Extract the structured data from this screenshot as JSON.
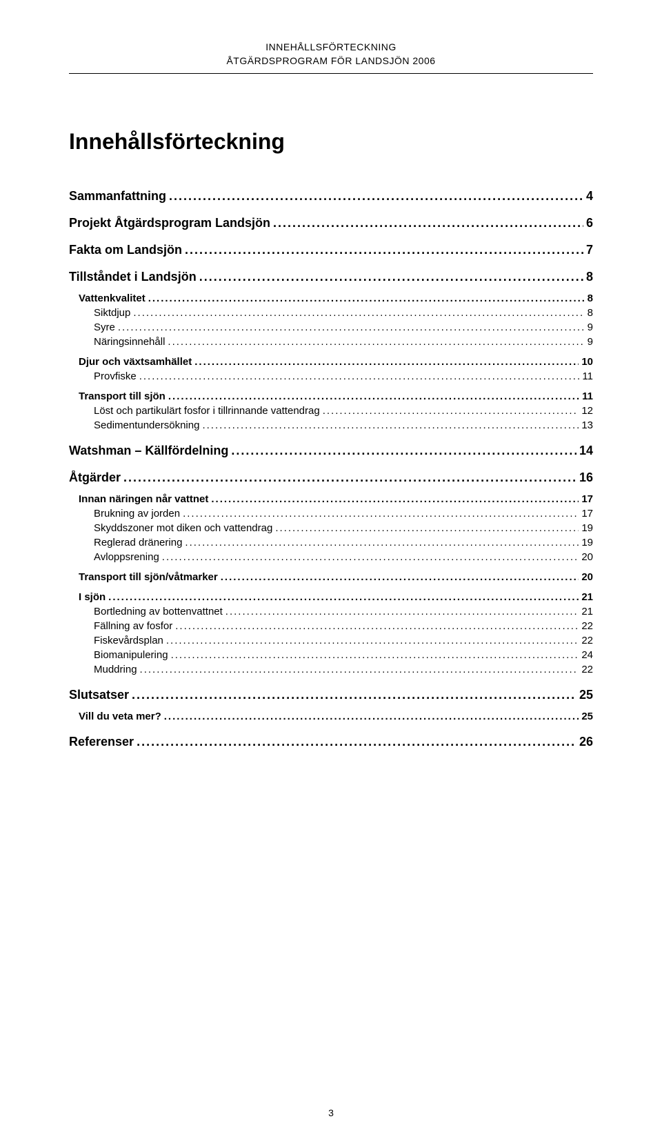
{
  "header": {
    "line1": "INNEHÅLLSFÖRTECKNING",
    "line2": "ÅTGÄRDSPROGRAM FÖR LANDSJÖN 2006"
  },
  "title": "Innehållsförteckning",
  "page_number": "3",
  "toc": [
    {
      "level": 1,
      "label": "Sammanfattning",
      "page": "4"
    },
    {
      "level": 1,
      "label": "Projekt Åtgärdsprogram Landsjön",
      "page": "6"
    },
    {
      "level": 1,
      "label": "Fakta om Landsjön",
      "page": "7"
    },
    {
      "level": 1,
      "label": "Tillståndet i Landsjön",
      "page": "8"
    },
    {
      "level": 2,
      "label": "Vattenkvalitet",
      "page": "8"
    },
    {
      "level": 3,
      "label": "Siktdjup",
      "page": "8"
    },
    {
      "level": 3,
      "label": "Syre",
      "page": "9"
    },
    {
      "level": 3,
      "label": "Näringsinnehåll",
      "page": "9"
    },
    {
      "level": 2,
      "label": "Djur och växtsamhället",
      "page": "10"
    },
    {
      "level": 3,
      "label": "Provfiske",
      "page": "11"
    },
    {
      "level": 2,
      "label": "Transport till sjön",
      "page": "11"
    },
    {
      "level": 3,
      "label": "Löst och partikulärt fosfor i tillrinnande vattendrag",
      "page": "12"
    },
    {
      "level": 3,
      "label": "Sedimentundersökning",
      "page": "13"
    },
    {
      "level": 1,
      "label": "Watshman – Källfördelning",
      "page": "14"
    },
    {
      "level": 1,
      "label": "Åtgärder",
      "page": "16"
    },
    {
      "level": 2,
      "label": "Innan näringen når vattnet",
      "page": "17"
    },
    {
      "level": 3,
      "label": "Brukning av jorden",
      "page": "17"
    },
    {
      "level": 3,
      "label": "Skyddszoner mot diken och vattendrag",
      "page": "19"
    },
    {
      "level": 3,
      "label": "Reglerad dränering",
      "page": "19"
    },
    {
      "level": 3,
      "label": "Avloppsrening",
      "page": "20"
    },
    {
      "level": 2,
      "label": "Transport till sjön/våtmarker",
      "page": "20"
    },
    {
      "level": 2,
      "label": "I sjön",
      "page": "21"
    },
    {
      "level": 3,
      "label": "Bortledning av bottenvattnet",
      "page": "21"
    },
    {
      "level": 3,
      "label": "Fällning av fosfor",
      "page": "22"
    },
    {
      "level": 3,
      "label": "Fiskevårdsplan",
      "page": "22"
    },
    {
      "level": 3,
      "label": "Biomanipulering",
      "page": "24"
    },
    {
      "level": 3,
      "label": "Muddring",
      "page": "22"
    },
    {
      "level": 1,
      "label": "Slutsatser",
      "page": "25"
    },
    {
      "level": 2,
      "label": "Vill du veta mer?",
      "page": "25"
    },
    {
      "level": 1,
      "label": "Referenser",
      "page": "26"
    }
  ]
}
